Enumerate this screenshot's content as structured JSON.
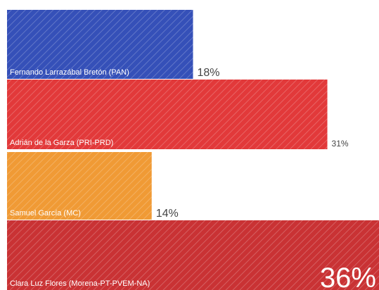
{
  "chart_data": {
    "type": "bar",
    "orientation": "horizontal",
    "categories": [
      "Fernando Larrazábal Bretón (PAN)",
      "Adrián de la Garza (PRI-PRD)",
      "Samuel García (MC)",
      "Clara Luz Flores (Morena-PT-PVEM-NA)"
    ],
    "values": [
      18,
      31,
      14,
      36
    ],
    "value_labels": [
      "18%",
      "31%",
      "14%",
      "36%"
    ],
    "colors": [
      "#3550b8",
      "#e2393a",
      "#f09a35",
      "#c93234"
    ],
    "xlim": [
      0,
      36
    ],
    "grid": false,
    "legend": "none"
  }
}
